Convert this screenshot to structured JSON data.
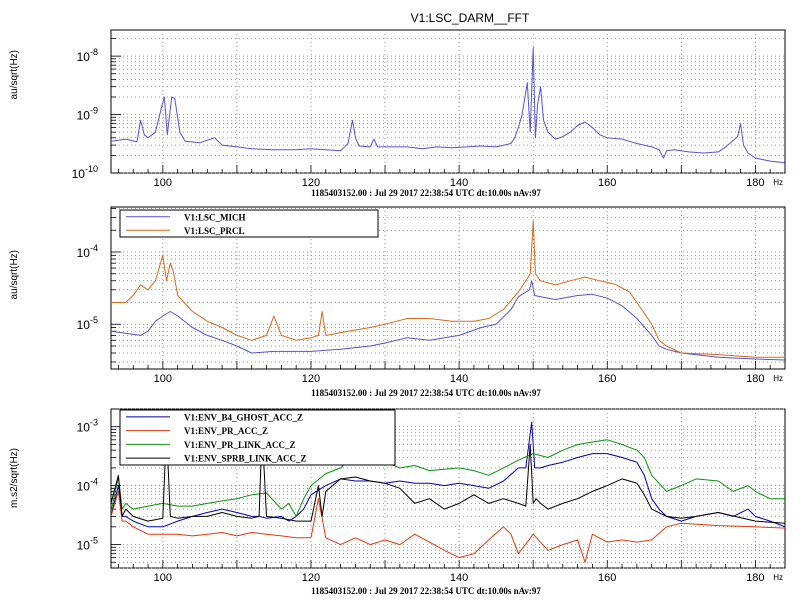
{
  "figure_title": "V1:LSC_DARM__FFT",
  "chart_data": [
    {
      "type": "line",
      "title": "V1:LSC_DARM__FFT",
      "ylabel": "au/sqrt(Hz)",
      "xunit": "Hz",
      "footer": "1185403152.00 : Jul 29 2017 22:38:54 UTC dt:10.00s nAv:97",
      "xlim": [
        93,
        184
      ],
      "ylim": [
        1e-10,
        2.8e-08
      ],
      "yscale": "log",
      "grid": true,
      "x_ticks": [
        "100",
        "120",
        "140",
        "160",
        "180"
      ],
      "y_ticks": [
        {
          "label": "10",
          "exp": "-10",
          "v": 1e-10
        },
        {
          "label": "10",
          "exp": "-9",
          "v": 1e-09
        },
        {
          "label": "10",
          "exp": "-8",
          "v": 1e-08
        }
      ],
      "series": [
        {
          "color": "#5555cc",
          "x": [
            93,
            95,
            96.5,
            97,
            97.5,
            98,
            99,
            99.8,
            100.2,
            100.6,
            101.2,
            101.6,
            102.3,
            103,
            105,
            107,
            108,
            110,
            112,
            115,
            118,
            120,
            122,
            124,
            125,
            125.6,
            126,
            126.5,
            128,
            128.5,
            129,
            131,
            133,
            135,
            137,
            139,
            141,
            143,
            145,
            147,
            147.5,
            148,
            148.5,
            149.2,
            149.6,
            150,
            150.3,
            150.6,
            151,
            151.4,
            152,
            153,
            154,
            155,
            156,
            157,
            158,
            159,
            160,
            162,
            164,
            166,
            167,
            167.6,
            168,
            169,
            171,
            173,
            175,
            176,
            177.6,
            178,
            178.4,
            179,
            180,
            182,
            184
          ],
          "y": [
            3.5e-10,
            3.8e-10,
            3.4e-10,
            8e-10,
            4.5e-10,
            4e-10,
            5e-10,
            1.3e-09,
            2e-09,
            4.5e-10,
            2e-09,
            1.9e-09,
            5e-10,
            3.5e-10,
            3.3e-10,
            4e-10,
            3e-10,
            2.8e-10,
            2.6e-10,
            2.5e-10,
            2.5e-10,
            2.6e-10,
            2.5e-10,
            2.4e-10,
            3.2e-10,
            8e-10,
            4e-10,
            2.9e-10,
            2.8e-10,
            3.8e-10,
            2.8e-10,
            2.8e-10,
            2.8e-10,
            2.6e-10,
            2.8e-10,
            2.7e-10,
            2.8e-10,
            2.9e-10,
            2.8e-10,
            3.2e-10,
            4e-10,
            6e-10,
            1e-09,
            3.5e-09,
            5e-10,
            1.4e-08,
            4e-10,
            1.5e-09,
            3e-09,
            8e-10,
            5e-10,
            3.8e-10,
            4.2e-10,
            5e-10,
            6.5e-10,
            7.5e-10,
            6e-10,
            4.5e-10,
            4e-10,
            3.8e-10,
            3.2e-10,
            2.8e-10,
            2.5e-10,
            1.8e-10,
            2.4e-10,
            2.5e-10,
            2.3e-10,
            2.2e-10,
            2.3e-10,
            2.8e-10,
            4.2e-10,
            7e-10,
            3e-10,
            2.2e-10,
            1.8e-10,
            1.6e-10,
            1.5e-10
          ]
        }
      ]
    },
    {
      "type": "line",
      "ylabel": "au/sqrt(Hz)",
      "xunit": "Hz",
      "footer": "1185403152.00 : Jul 29 2017 22:38:54 UTC dt:10.00s nAv:97",
      "xlim": [
        93,
        184
      ],
      "ylim": [
        2.4e-06,
        0.00042
      ],
      "yscale": "log",
      "grid": true,
      "x_ticks": [
        "100",
        "120",
        "140",
        "160",
        "180"
      ],
      "y_ticks": [
        {
          "label": "10",
          "exp": "-5",
          "v": 1e-05
        },
        {
          "label": "10",
          "exp": "-4",
          "v": 0.0001
        }
      ],
      "series": [
        {
          "name": "V1:LSC_MICH",
          "color": "#5555cc",
          "x": [
            93,
            95,
            97,
            98,
            99,
            100,
            101,
            102,
            104,
            106,
            108,
            110,
            112,
            115,
            118,
            120,
            124,
            128,
            130,
            133,
            136,
            140,
            143,
            145,
            147,
            148,
            149,
            149.5,
            149.8,
            150.2,
            151,
            153,
            156,
            158,
            160,
            162,
            164,
            166,
            167,
            168,
            170,
            175,
            180,
            184
          ],
          "y": [
            8e-06,
            7.5e-06,
            7e-06,
            8e-06,
            1.1e-05,
            1.3e-05,
            1.5e-05,
            1.3e-05,
            9e-06,
            7e-06,
            6e-06,
            5e-06,
            4e-06,
            4.2e-06,
            4.2e-06,
            4.2e-06,
            4.5e-06,
            5e-06,
            5.5e-06,
            6.5e-06,
            6e-06,
            7e-06,
            9e-06,
            1e-05,
            1.6e-05,
            2.4e-05,
            2.8e-05,
            3e-05,
            4e-05,
            2.5e-05,
            2.4e-05,
            2.2e-05,
            2.5e-05,
            2.6e-05,
            2.3e-05,
            1.8e-05,
            1.2e-05,
            7e-06,
            5e-06,
            4.5e-06,
            4e-06,
            3.5e-06,
            3.3e-06,
            3.2e-06
          ]
        },
        {
          "name": "V1:LSC_PRCL",
          "color": "#d86a1e",
          "x": [
            93,
            95,
            96,
            97,
            98,
            99,
            99.5,
            100,
            100.5,
            101,
            101.4,
            102,
            104,
            106,
            108,
            110,
            112,
            114,
            115,
            116,
            118,
            120,
            121,
            121.5,
            122,
            125,
            128,
            130,
            133,
            136,
            139,
            142,
            144,
            146,
            148,
            149,
            149.6,
            150,
            150.3,
            151,
            153,
            155,
            157,
            159,
            161,
            163,
            164,
            166,
            167,
            168,
            170,
            175,
            180,
            184
          ],
          "y": [
            2e-05,
            2e-05,
            2.5e-05,
            3.5e-05,
            3e-05,
            4e-05,
            6e-05,
            9e-05,
            4e-05,
            7e-05,
            5.5e-05,
            2.5e-05,
            1.5e-05,
            1.1e-05,
            9e-06,
            7e-06,
            6e-06,
            7e-06,
            1.3e-05,
            7e-06,
            6e-06,
            6.5e-06,
            7e-06,
            1.5e-05,
            7e-06,
            8e-06,
            9e-06,
            1e-05,
            1.2e-05,
            1.2e-05,
            1.1e-05,
            1.1e-05,
            1.2e-05,
            1.6e-05,
            2.8e-05,
            4e-05,
            5e-05,
            0.00027,
            5e-05,
            4e-05,
            3.5e-05,
            4e-05,
            4.5e-05,
            4e-05,
            3.6e-05,
            2.8e-05,
            2e-05,
            1e-05,
            6e-06,
            5e-06,
            4e-06,
            3.8e-06,
            3.5e-06,
            3.5e-06
          ]
        }
      ]
    },
    {
      "type": "line",
      "ylabel": "m.s2/sqrt(Hz)",
      "xunit": "Hz",
      "footer": "1185403152.00 : Jul 29 2017 22:38:54 UTC dt:10.00s nAv:97",
      "xlim": [
        93,
        184
      ],
      "ylim": [
        4e-06,
        0.002
      ],
      "yscale": "log",
      "grid": true,
      "x_ticks": [
        "100",
        "120",
        "140",
        "160",
        "180"
      ],
      "y_ticks": [
        {
          "label": "10",
          "exp": "-5",
          "v": 1e-05
        },
        {
          "label": "10",
          "exp": "-4",
          "v": 0.0001
        },
        {
          "label": "10",
          "exp": "-3",
          "v": 0.001
        }
      ],
      "series": [
        {
          "name": "V1:ENV_B4_GHOST_ACC_Z",
          "color": "#0000b0",
          "x": [
            93,
            94,
            94.5,
            95,
            96,
            98,
            100,
            102,
            104,
            106,
            108,
            110,
            112,
            113,
            114,
            116,
            117,
            118,
            119,
            120,
            122,
            124,
            126,
            128,
            130,
            132,
            134,
            136,
            138,
            140,
            142,
            144,
            146,
            148,
            149,
            149.8,
            150.2,
            151,
            152,
            154,
            156,
            158,
            160,
            162,
            164,
            165,
            166,
            167,
            168,
            170,
            172,
            175,
            177,
            179,
            180,
            182,
            184
          ],
          "y": [
            3e-05,
            0.0001,
            3e-05,
            3e-05,
            2.5e-05,
            2e-05,
            2e-05,
            2.5e-05,
            3e-05,
            3.5e-05,
            4e-05,
            3.5e-05,
            3e-05,
            3e-05,
            2.8e-05,
            3e-05,
            2.5e-05,
            3e-05,
            4e-05,
            7e-05,
            0.0001,
            0.00013,
            0.00012,
            0.00012,
            0.00011,
            0.00012,
            0.00011,
            0.00011,
            0.0001,
            0.00011,
            0.0001,
            9e-05,
            0.00012,
            0.0002,
            0.0002,
            0.0012,
            0.0002,
            0.0002,
            0.00022,
            0.00025,
            0.0003,
            0.00035,
            0.00035,
            0.0003,
            0.00025,
            0.00015,
            6e-05,
            4e-05,
            3e-05,
            2.5e-05,
            3e-05,
            3.5e-05,
            3e-05,
            4e-05,
            3e-05,
            2.5e-05,
            2e-05
          ]
        },
        {
          "name": "V1:ENV_PR_ACC_Z",
          "color": "#e03a10",
          "x": [
            93,
            94,
            94.5,
            95,
            96,
            98,
            100,
            102,
            104,
            106,
            108,
            110,
            112,
            114,
            116,
            118,
            120,
            121,
            122,
            124,
            126,
            128,
            130,
            132,
            134,
            136,
            138,
            140,
            142,
            144,
            146,
            147,
            148,
            150,
            152,
            154,
            156,
            157,
            158,
            160,
            162,
            164,
            166,
            168,
            170,
            175,
            180,
            184
          ],
          "y": [
            3e-05,
            8e-05,
            2.5e-05,
            2.5e-05,
            2e-05,
            1.5e-05,
            1.5e-05,
            1.5e-05,
            1.4e-05,
            1.5e-05,
            1.6e-05,
            1.4e-05,
            1.6e-05,
            1.5e-05,
            1.4e-05,
            1.3e-05,
            1.3e-05,
            6e-05,
            1.3e-05,
            1e-05,
            1.3e-05,
            1e-05,
            1.2e-05,
            1e-05,
            1.5e-05,
            1.1e-05,
            8e-06,
            6e-06,
            7e-06,
            1.2e-05,
            2e-05,
            1.5e-05,
            7e-06,
            1.5e-05,
            8e-06,
            1e-05,
            1.2e-05,
            5e-06,
            1.5e-05,
            1.1e-05,
            1.2e-05,
            1.1e-05,
            1.2e-05,
            2e-05,
            2.3e-05,
            2.1e-05,
            2e-05,
            1.9e-05
          ]
        },
        {
          "name": "V1:ENV_PR_LINK_ACC_Z",
          "color": "#109010",
          "x": [
            93,
            94,
            94.5,
            95,
            96,
            98,
            100,
            102,
            104,
            106,
            108,
            110,
            112,
            114,
            116,
            117,
            118,
            119,
            120,
            122,
            124,
            126,
            128,
            130,
            132,
            134,
            136,
            138,
            140,
            142,
            144,
            146,
            148,
            150,
            152,
            154,
            156,
            158,
            160,
            162,
            164,
            165,
            166,
            168,
            170,
            172,
            175,
            177,
            179,
            180,
            182,
            184
          ],
          "y": [
            3.5e-05,
            0.00014,
            4e-05,
            5e-05,
            4e-05,
            4.5e-05,
            5e-05,
            4.5e-05,
            4.5e-05,
            5e-05,
            5.5e-05,
            6e-05,
            7e-05,
            7.5e-05,
            4e-05,
            5e-05,
            3e-05,
            6e-05,
            0.0001,
            0.00016,
            0.0002,
            0.00035,
            0.0003,
            0.00025,
            0.0002,
            0.00022,
            0.00018,
            0.00019,
            0.0002,
            0.00018,
            0.00015,
            0.0002,
            0.00027,
            0.00035,
            0.0003,
            0.0004,
            0.0005,
            0.00055,
            0.0006,
            0.0005,
            0.0004,
            0.0003,
            0.00015,
            8e-05,
            0.0001,
            0.00013,
            0.00012,
            8e-05,
            0.0001,
            8e-05,
            6e-05,
            6e-05
          ]
        },
        {
          "name": "V1:ENV_SPRB_LINK_ACC_Z",
          "color": "#000000",
          "x": [
            93,
            94,
            94.5,
            95,
            96,
            98,
            100,
            100.5,
            101,
            102,
            104,
            106,
            108,
            110,
            112,
            113,
            113.4,
            114,
            116,
            118,
            120,
            121,
            121.5,
            122,
            124,
            126,
            128,
            130,
            132,
            134,
            136,
            138,
            140,
            142,
            144,
            146,
            148,
            149,
            149.6,
            150,
            150.4,
            151,
            152,
            154,
            156,
            158,
            160,
            162,
            164,
            165,
            166,
            168,
            170,
            172,
            175,
            180,
            184
          ],
          "y": [
            5e-05,
            0.00015,
            3e-05,
            4e-05,
            3e-05,
            2.5e-05,
            2.8e-05,
            0.0009,
            3e-05,
            2.8e-05,
            3e-05,
            3e-05,
            3.5e-05,
            3e-05,
            2.8e-05,
            3e-05,
            0.0009,
            3e-05,
            2.8e-05,
            2.5e-05,
            2.5e-05,
            0.0001,
            3e-05,
            8e-05,
            0.00013,
            0.00014,
            0.00012,
            0.00011,
            9e-05,
            5e-05,
            6e-05,
            4e-05,
            5e-05,
            7e-05,
            5e-05,
            6e-05,
            5e-05,
            4.5e-05,
            0.0005,
            5e-05,
            6e-05,
            5e-05,
            4e-05,
            5e-05,
            6e-05,
            8e-05,
            0.0001,
            0.00013,
            0.00011,
            7e-05,
            4e-05,
            3e-05,
            2.8e-05,
            3e-05,
            3.5e-05,
            2.5e-05,
            2.3e-05
          ]
        }
      ]
    }
  ]
}
